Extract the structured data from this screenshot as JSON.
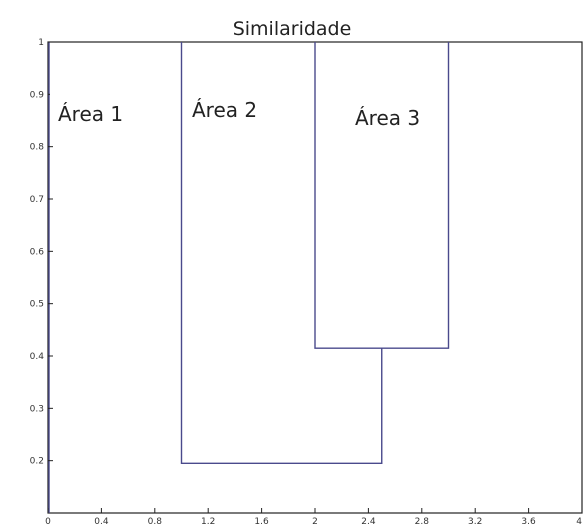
{
  "chart_data": {
    "type": "dendrogram",
    "title": "Similaridade",
    "xlabel": "",
    "ylabel": "",
    "xlim": [
      0,
      4
    ],
    "ylim": [
      0.1,
      1
    ],
    "x_ticks": [
      "0",
      "0.4",
      "0.8",
      "1.2",
      "1.6",
      "2",
      "2.4",
      "2.8",
      "3.2",
      "3.6",
      "4"
    ],
    "y_ticks": [
      "0.2",
      "0.3",
      "0.4",
      "0.5",
      "0.6",
      "0.7",
      "0.8",
      "0.9",
      "1"
    ],
    "leaves": [
      {
        "label": "Área 1",
        "x": 0
      },
      {
        "label": "Área 2",
        "x": 1
      },
      {
        "label": "Área 3",
        "x": 2
      },
      {
        "label": "",
        "x": 3
      }
    ],
    "merges": [
      {
        "left_x": 2,
        "right_x": 3,
        "left_top": 1,
        "right_top": 1,
        "height": 0.415
      },
      {
        "left_x": 1,
        "right_x": 2.5,
        "left_top": 1,
        "right_top": 0.415,
        "height": 0.195
      }
    ],
    "line_color": "#4a4a8c",
    "grid": false
  }
}
